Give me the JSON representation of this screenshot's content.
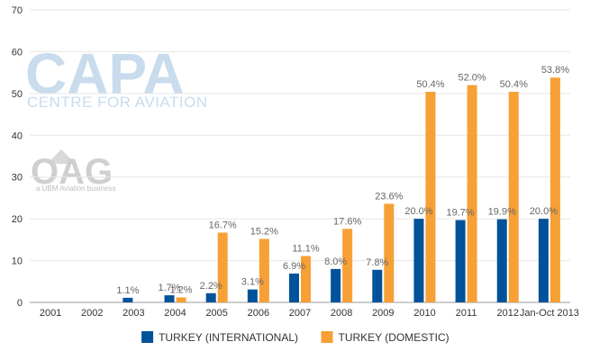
{
  "chart_data": {
    "type": "bar",
    "categories": [
      "2001",
      "2002",
      "2003",
      "2004",
      "2005",
      "2006",
      "2007",
      "2008",
      "2009",
      "2010",
      "2011",
      "2012",
      "Jan-Oct 2013"
    ],
    "series": [
      {
        "name": "TURKEY (INTERNATIONAL)",
        "color": "#00529b",
        "values": [
          0,
          0,
          1.1,
          1.7,
          2.2,
          3.1,
          6.9,
          8.0,
          7.8,
          20.0,
          19.7,
          19.9,
          20.0
        ],
        "labels": [
          "",
          "",
          "1.1%",
          "1.7%",
          "2.2%",
          "3.1%",
          "6.9%",
          "8.0%",
          "7.8%",
          "20.0%",
          "19.7%",
          "19.9%",
          "20.0%"
        ]
      },
      {
        "name": "TURKEY (DOMESTIC)",
        "color": "#f7a035",
        "values": [
          0,
          0,
          0,
          1.2,
          16.7,
          15.2,
          11.1,
          17.6,
          23.6,
          50.4,
          52.0,
          50.4,
          53.8
        ],
        "labels": [
          "",
          "",
          "",
          "1.2%",
          "16.7%",
          "15.2%",
          "11.1%",
          "17.6%",
          "23.6%",
          "50.4%",
          "52.0%",
          "50.4%",
          "53.8%"
        ]
      }
    ],
    "yticks": [
      "0",
      "10",
      "20",
      "30",
      "40",
      "50",
      "60",
      "70"
    ],
    "ylim": [
      0,
      70
    ],
    "grid": true,
    "legend": "bottom-center"
  },
  "watermark": {
    "capa_title": "CAPA",
    "capa_sub": "CENTRE FOR AVIATION",
    "oag_title": "OAG",
    "oag_sub": "a UBM Aviation business"
  }
}
